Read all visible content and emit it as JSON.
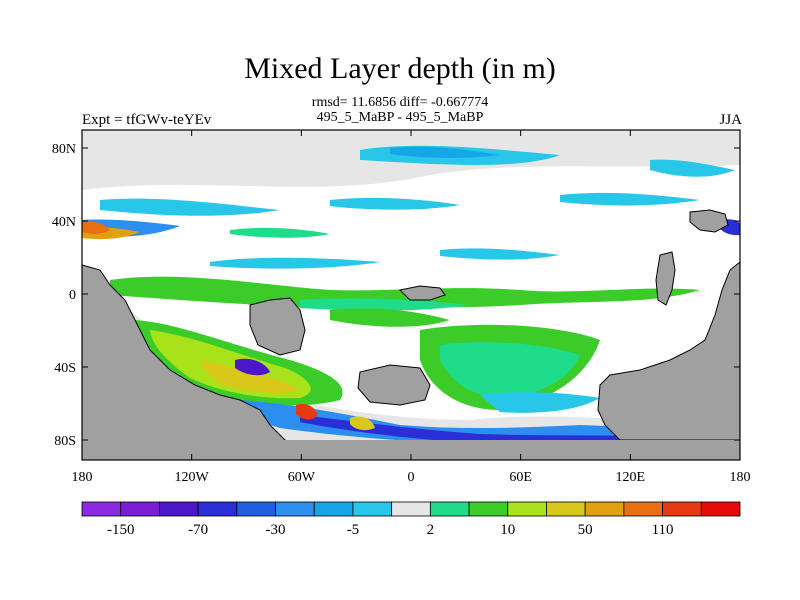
{
  "chart_data": {
    "type": "heatmap",
    "title": "Mixed Layer depth (in m)",
    "stats_line1": "rmsd= 11.6856  diff= -0.667774",
    "stats_line2": "495_5_MaBP - 495_5_MaBP",
    "left_label": "Expt = tfGWv-teYEv",
    "right_label": "JJA",
    "x_ticks": [
      "180",
      "120W",
      "60W",
      "0",
      "60E",
      "120E",
      "180"
    ],
    "y_ticks": [
      "80N",
      "40N",
      "0",
      "40S",
      "80S"
    ],
    "colorbar": {
      "colors": [
        "#8a2be2",
        "#7b1fd6",
        "#4b17c8",
        "#2a2ed6",
        "#1f5fe0",
        "#2b8ef0",
        "#16a6e8",
        "#28c6e8",
        "#e6e6e6",
        "#1fdc8a",
        "#3ccc2a",
        "#a8e21a",
        "#d8c81a",
        "#e0a010",
        "#e87010",
        "#e83a10",
        "#e60a0a"
      ],
      "labels": [
        "-150",
        "-70",
        "-30",
        "-5",
        "2",
        "10",
        "50",
        "110"
      ]
    }
  }
}
